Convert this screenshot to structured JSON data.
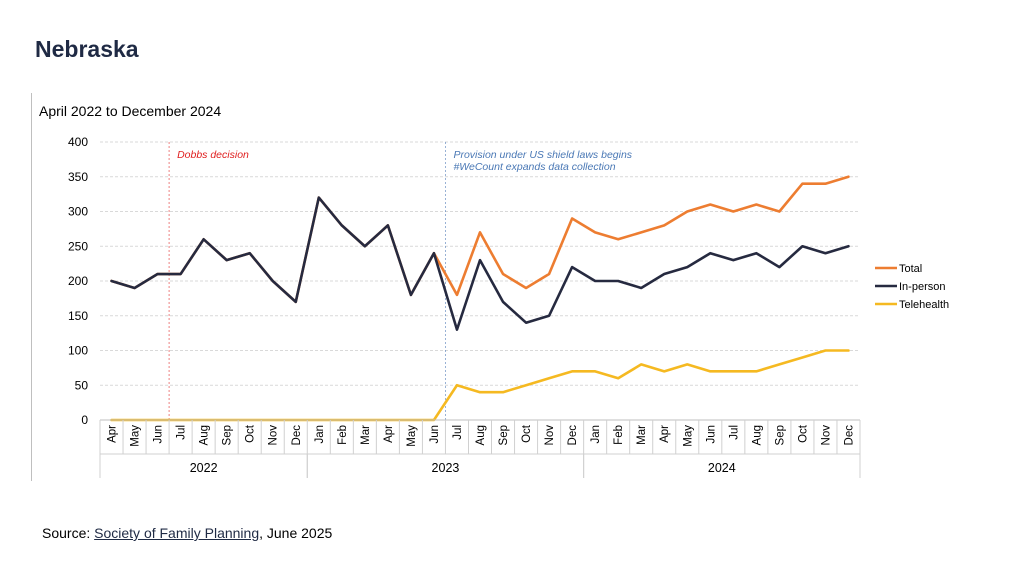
{
  "page": {
    "title": "Nebraska",
    "source_prefix": "Source: ",
    "source_link": "Society of Family Planning",
    "source_suffix": ", June 2025"
  },
  "chart_data": {
    "type": "line",
    "title": "April 2022 to December 2024",
    "xlabel": "",
    "ylabel": "",
    "ylim": [
      0,
      400
    ],
    "yticks": [
      0,
      50,
      100,
      150,
      200,
      250,
      300,
      350,
      400
    ],
    "grid": true,
    "legend_position": "right",
    "categories": [
      "Apr",
      "May",
      "Jun",
      "Jul",
      "Aug",
      "Sep",
      "Oct",
      "Nov",
      "Dec",
      "Jan",
      "Feb",
      "Mar",
      "Apr",
      "May",
      "Jun",
      "Jul",
      "Aug",
      "Sep",
      "Oct",
      "Nov",
      "Dec",
      "Jan",
      "Feb",
      "Mar",
      "Apr",
      "May",
      "Jun",
      "Jul",
      "Aug",
      "Sep",
      "Oct",
      "Nov",
      "Dec"
    ],
    "years": [
      {
        "label": "2022",
        "start": 0,
        "end": 8
      },
      {
        "label": "2023",
        "start": 9,
        "end": 20
      },
      {
        "label": "2024",
        "start": 21,
        "end": 32
      }
    ],
    "series": [
      {
        "name": "Total",
        "color": "#ed7d31",
        "values": [
          200,
          190,
          210,
          210,
          260,
          230,
          240,
          200,
          170,
          320,
          280,
          250,
          280,
          180,
          240,
          180,
          270,
          210,
          190,
          210,
          290,
          270,
          260,
          270,
          280,
          300,
          310,
          300,
          310,
          300,
          340,
          340,
          350
        ]
      },
      {
        "name": "In-person",
        "color": "#262a40",
        "values": [
          200,
          190,
          210,
          210,
          260,
          230,
          240,
          200,
          170,
          320,
          280,
          250,
          280,
          180,
          240,
          130,
          230,
          170,
          140,
          150,
          220,
          200,
          200,
          190,
          210,
          220,
          240,
          230,
          240,
          220,
          250,
          240,
          250
        ]
      },
      {
        "name": "Telehealth",
        "color": "#f5b921",
        "values": [
          0,
          0,
          0,
          0,
          0,
          0,
          0,
          0,
          0,
          0,
          0,
          0,
          0,
          0,
          0,
          50,
          40,
          40,
          50,
          60,
          70,
          70,
          60,
          80,
          70,
          80,
          70,
          70,
          70,
          80,
          90,
          100,
          100
        ]
      }
    ],
    "annotations": [
      {
        "index": 2,
        "lines": [
          "Dobbs decision"
        ],
        "color": "#e02020"
      },
      {
        "index": 14,
        "lines": [
          "Provision under US shield laws begins",
          "#WeCount expands data collection"
        ],
        "color": "#4a78b5"
      }
    ]
  }
}
